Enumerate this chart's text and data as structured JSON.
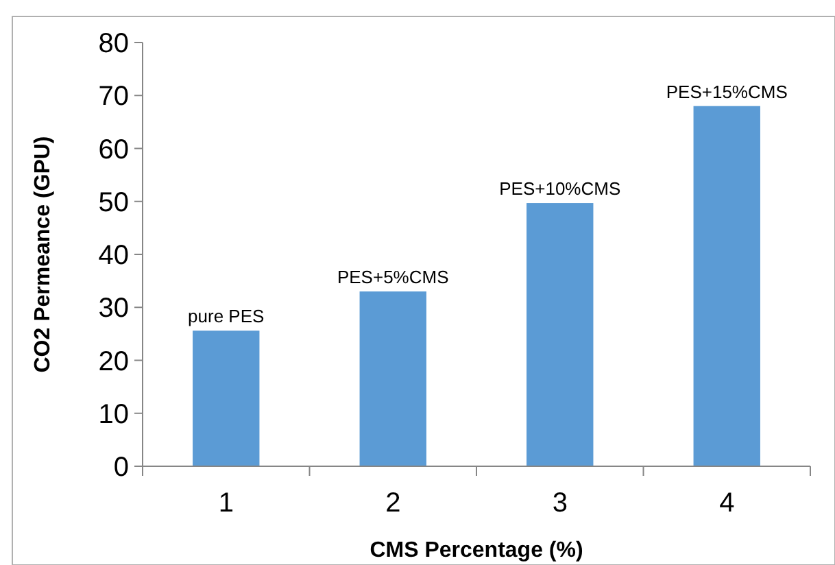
{
  "chart_data": {
    "type": "bar",
    "xlabel": "CMS Percentage (%)",
    "ylabel": "CO2 Permeance (GPU)",
    "categories": [
      "1",
      "2",
      "3",
      "4"
    ],
    "values": [
      25.6,
      33,
      49.7,
      68
    ],
    "color": "#5b9bd5",
    "ylim": [
      0,
      80
    ],
    "yticks": [
      0,
      10,
      20,
      30,
      40,
      50,
      60,
      70,
      80
    ],
    "annotations": [
      {
        "text": "pure PES",
        "x": "1",
        "y": 25.6
      },
      {
        "text": "PES+5%CMS",
        "x": "2",
        "y": 33
      },
      {
        "text": "PES+10%CMS",
        "x": "3",
        "y": 49.7
      },
      {
        "text": "PES+15%CMS",
        "x": "4",
        "y": 68
      }
    ]
  }
}
